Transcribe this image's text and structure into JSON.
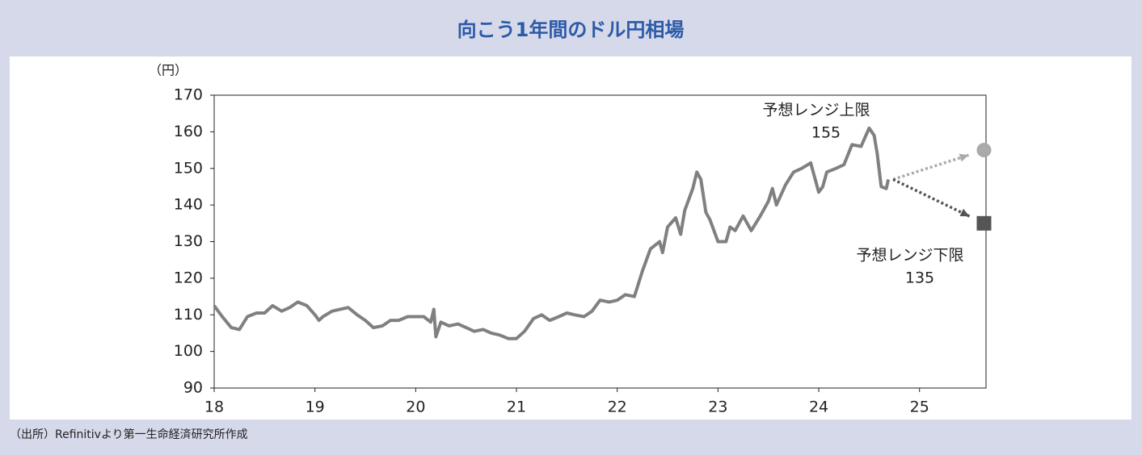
{
  "chart_data": {
    "type": "line",
    "title": "向こう1年間のドル円相場",
    "y_unit": "（円）",
    "source": "（出所）Refinitivより第一生命経済研究所作成",
    "x": [
      18.0,
      18.08,
      18.17,
      18.25,
      18.33,
      18.42,
      18.5,
      18.58,
      18.67,
      18.75,
      18.83,
      18.92,
      19.0,
      19.04,
      19.08,
      19.17,
      19.25,
      19.33,
      19.42,
      19.5,
      19.58,
      19.67,
      19.75,
      19.83,
      19.92,
      20.0,
      20.08,
      20.15,
      20.18,
      20.2,
      20.25,
      20.33,
      20.42,
      20.5,
      20.58,
      20.67,
      20.75,
      20.83,
      20.92,
      21.0,
      21.08,
      21.17,
      21.25,
      21.33,
      21.42,
      21.5,
      21.58,
      21.67,
      21.75,
      21.83,
      21.92,
      22.0,
      22.08,
      22.17,
      22.25,
      22.33,
      22.42,
      22.45,
      22.5,
      22.58,
      22.63,
      22.67,
      22.75,
      22.79,
      22.83,
      22.88,
      22.92,
      23.0,
      23.08,
      23.12,
      23.17,
      23.25,
      23.33,
      23.42,
      23.5,
      23.54,
      23.58,
      23.67,
      23.75,
      23.83,
      23.92,
      24.0,
      24.04,
      24.08,
      24.17,
      24.25,
      24.33,
      24.42,
      24.5,
      24.55,
      24.58,
      24.62,
      24.67,
      24.69
    ],
    "series": [
      {
        "color": "#808080",
        "values": [
          112.5,
          109.5,
          106.5,
          106,
          109.5,
          110.5,
          110.5,
          112.5,
          111,
          112,
          113.5,
          112.5,
          110,
          108.5,
          109.5,
          111,
          111.5,
          112,
          110,
          108.5,
          106.5,
          107,
          108.5,
          108.5,
          109.5,
          109.5,
          109.5,
          108,
          111.5,
          104,
          108,
          107,
          107.5,
          106.5,
          105.5,
          106,
          105,
          104.5,
          103.5,
          103.5,
          105.5,
          109,
          110,
          108.5,
          109.5,
          110.5,
          110,
          109.5,
          111,
          114,
          113.5,
          114,
          115.5,
          115,
          122,
          128,
          130,
          127,
          134,
          136.5,
          132,
          138.5,
          144.5,
          149,
          147,
          138,
          136,
          130,
          130,
          134,
          133,
          137,
          133,
          137,
          141,
          144.5,
          140,
          145.5,
          149,
          150,
          151.5,
          143.5,
          145,
          149,
          150,
          151,
          156.5,
          156,
          161,
          159,
          154,
          145,
          144.5,
          147
        ]
      }
    ],
    "projections": [
      {
        "label": "予想レンジ上限",
        "x": 25.64,
        "value": 155,
        "color": "#aaaaaa",
        "marker": "circle"
      },
      {
        "label": "予想レンジ下限",
        "x": 25.64,
        "value": 135,
        "color": "#555555",
        "marker": "square"
      }
    ],
    "xlim": [
      18,
      25.66
    ],
    "xticks": [
      18,
      19,
      20,
      21,
      22,
      23,
      24,
      25
    ],
    "ylim": [
      90,
      170
    ],
    "yticks": [
      90,
      100,
      110,
      120,
      130,
      140,
      150,
      160,
      170
    ]
  }
}
